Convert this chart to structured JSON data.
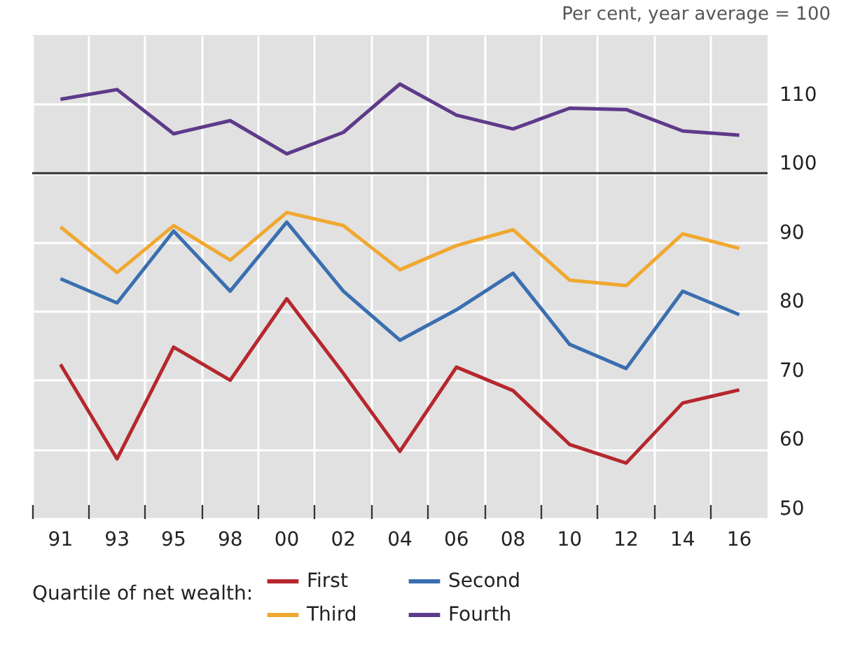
{
  "chart_data": {
    "type": "line",
    "annotations": [
      "Per cent, year average = 100"
    ],
    "legend_title": "Quartile of net wealth:",
    "categories": [
      "91",
      "93",
      "95",
      "98",
      "00",
      "02",
      "04",
      "06",
      "08",
      "10",
      "12",
      "14",
      "16"
    ],
    "series": [
      {
        "name": "First",
        "color": "#b5282e",
        "values": [
          72.3,
          58.6,
          74.8,
          70.0,
          81.8,
          71,
          59.7,
          71.9,
          68.5,
          60.7,
          58.0,
          66.7,
          68.6
        ]
      },
      {
        "name": "Second",
        "color": "#3a6fb0",
        "values": [
          84.7,
          81.2,
          91.6,
          82.9,
          92.9,
          82.9,
          75.8,
          80.2,
          85.5,
          75.2,
          71.7,
          82.9,
          79.5
        ]
      },
      {
        "name": "Third",
        "color": "#f0a830",
        "values": [
          92.2,
          85.6,
          92.4,
          87.4,
          94.3,
          92.4,
          86.0,
          89.5,
          91.8,
          84.5,
          83.7,
          91.2,
          89.1
        ]
      },
      {
        "name": "Fourth",
        "color": "#5e3a8a",
        "values": [
          110.7,
          112.1,
          105.7,
          107.6,
          102.8,
          105.9,
          112.9,
          108.4,
          106.4,
          109.4,
          109.2,
          106.1,
          105.5
        ]
      }
    ],
    "ylim": [
      50,
      120
    ],
    "yticks": [
      50,
      60,
      70,
      80,
      90,
      100,
      110
    ],
    "ref_lines": [
      {
        "axis": "y",
        "value": 100,
        "color": "#333333"
      }
    ],
    "grid": true,
    "legend": "bottom",
    "marker": "none",
    "line_style": "solid"
  }
}
